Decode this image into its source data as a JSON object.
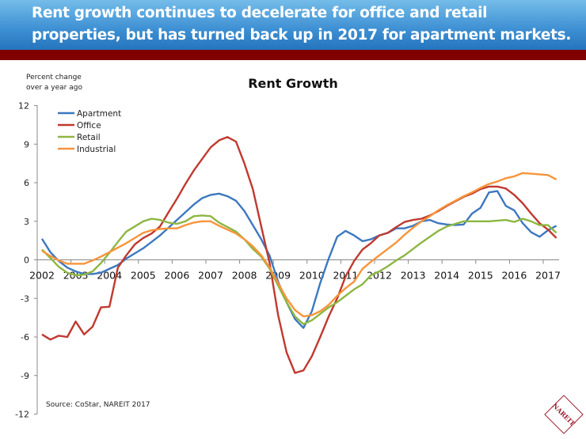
{
  "header": {
    "line1": "Rent growth continues to decelerate for office and retail",
    "line2": "properties, but has turned back up in 2017 for apartment markets."
  },
  "colors": {
    "banner": "#3d8fd3",
    "stripe": "#800000"
  },
  "logo": {
    "text": "NAREIT",
    "color": "#9b1c2c"
  },
  "chart_data": {
    "type": "line",
    "title": "Rent Growth",
    "ylabel_line1": "Percent change",
    "ylabel_line2": "over a year ago",
    "source": "Source: CoStar, NAREIT 2017",
    "ylim": [
      -12,
      12
    ],
    "yticks": [
      "12",
      "9",
      "6",
      "3",
      "0",
      "-3",
      "-6",
      "-9",
      "-12"
    ],
    "xticks": [
      "2002",
      "2003",
      "2004",
      "2005",
      "2006",
      "2007",
      "2008",
      "2009",
      "2010",
      "2011",
      "2012",
      "2013",
      "2014",
      "2015",
      "2016",
      "2017"
    ],
    "grid": false,
    "legend": "top-left",
    "x": [
      "2002Q1",
      "2002Q2",
      "2002Q3",
      "2002Q4",
      "2003Q1",
      "2003Q2",
      "2003Q3",
      "2003Q4",
      "2004Q1",
      "2004Q2",
      "2004Q3",
      "2004Q4",
      "2005Q1",
      "2005Q2",
      "2005Q3",
      "2005Q4",
      "2006Q1",
      "2006Q2",
      "2006Q3",
      "2006Q4",
      "2007Q1",
      "2007Q2",
      "2007Q3",
      "2007Q4",
      "2008Q1",
      "2008Q2",
      "2008Q3",
      "2008Q4",
      "2009Q1",
      "2009Q2",
      "2009Q3",
      "2009Q4",
      "2010Q1",
      "2010Q2",
      "2010Q3",
      "2010Q4",
      "2011Q1",
      "2011Q2",
      "2011Q3",
      "2011Q4",
      "2012Q1",
      "2012Q2",
      "2012Q3",
      "2012Q4",
      "2013Q1",
      "2013Q2",
      "2013Q3",
      "2013Q4",
      "2014Q1",
      "2014Q2",
      "2014Q3",
      "2014Q4",
      "2015Q1",
      "2015Q2",
      "2015Q3",
      "2015Q4",
      "2016Q1",
      "2016Q2",
      "2016Q3",
      "2016Q4",
      "2017Q1",
      "2017Q2"
    ],
    "series": [
      {
        "name": "Apartment",
        "color": "#3c78c0",
        "values": [
          1.64,
          0.6,
          -0.1,
          -0.6,
          -0.9,
          -1.1,
          -1.1,
          -1.0,
          -0.7,
          -0.4,
          0.1,
          0.5,
          0.9,
          1.4,
          1.9,
          2.5,
          3.1,
          3.7,
          4.3,
          4.8,
          5.05,
          5.15,
          4.95,
          4.6,
          3.8,
          2.7,
          1.6,
          0.3,
          -1.7,
          -3.3,
          -4.6,
          -5.3,
          -4.0,
          -1.8,
          0.1,
          1.8,
          2.25,
          1.9,
          1.45,
          1.6,
          1.9,
          2.1,
          2.45,
          2.45,
          2.65,
          3.0,
          3.1,
          2.85,
          2.75,
          2.7,
          2.75,
          3.6,
          4.05,
          5.25,
          5.35,
          4.2,
          3.85,
          2.85,
          2.15,
          1.8,
          2.3,
          2.65
        ]
      },
      {
        "name": "Office",
        "color": "#c0392f",
        "values": [
          -5.8,
          -6.2,
          -5.9,
          -6.0,
          -4.8,
          -5.8,
          -5.2,
          -3.7,
          -3.65,
          -0.6,
          0.35,
          1.2,
          1.7,
          2.05,
          2.6,
          3.7,
          4.75,
          5.9,
          6.95,
          7.85,
          8.75,
          9.3,
          9.55,
          9.2,
          7.5,
          5.5,
          2.6,
          -0.3,
          -4.3,
          -7.2,
          -8.8,
          -8.6,
          -7.5,
          -6.0,
          -4.4,
          -3.0,
          -1.3,
          -0.1,
          0.8,
          1.3,
          1.9,
          2.1,
          2.55,
          2.95,
          3.1,
          3.2,
          3.45,
          3.8,
          4.2,
          4.55,
          4.9,
          5.15,
          5.5,
          5.7,
          5.7,
          5.55,
          5.05,
          4.4,
          3.6,
          2.85,
          2.35,
          1.7
        ]
      },
      {
        "name": "Retail",
        "color": "#8db642",
        "values": [
          0.8,
          0.15,
          -0.55,
          -1.0,
          -1.2,
          -1.15,
          -0.9,
          -0.25,
          0.55,
          1.4,
          2.2,
          2.6,
          3.0,
          3.2,
          3.1,
          2.9,
          2.8,
          3.0,
          3.4,
          3.45,
          3.4,
          2.9,
          2.55,
          2.2,
          1.6,
          0.85,
          0.25,
          -0.7,
          -2.0,
          -3.3,
          -4.4,
          -5.0,
          -4.7,
          -4.2,
          -3.7,
          -3.3,
          -2.8,
          -2.3,
          -1.9,
          -1.2,
          -0.9,
          -0.5,
          -0.05,
          0.35,
          0.85,
          1.35,
          1.8,
          2.25,
          2.6,
          2.8,
          3.0,
          3.0,
          3.0,
          3.0,
          3.05,
          3.1,
          2.95,
          3.2,
          3.0,
          2.7,
          2.7,
          2.1
        ]
      },
      {
        "name": "Industrial",
        "color": "#f7943a",
        "values": [
          0.7,
          0.3,
          -0.05,
          -0.3,
          -0.3,
          -0.3,
          -0.05,
          0.25,
          0.6,
          0.95,
          1.3,
          1.7,
          2.1,
          2.3,
          2.4,
          2.45,
          2.45,
          2.7,
          2.9,
          3.0,
          3.0,
          2.65,
          2.35,
          2.05,
          1.6,
          1.05,
          0.35,
          -0.6,
          -1.8,
          -3.0,
          -3.9,
          -4.4,
          -4.3,
          -4.0,
          -3.5,
          -2.8,
          -2.2,
          -1.7,
          -0.7,
          -0.15,
          0.35,
          0.85,
          1.35,
          1.95,
          2.5,
          3.0,
          3.4,
          3.85,
          4.25,
          4.6,
          4.95,
          5.25,
          5.6,
          5.9,
          6.1,
          6.35,
          6.5,
          6.75,
          6.7,
          6.65,
          6.6,
          6.25
        ]
      }
    ]
  }
}
